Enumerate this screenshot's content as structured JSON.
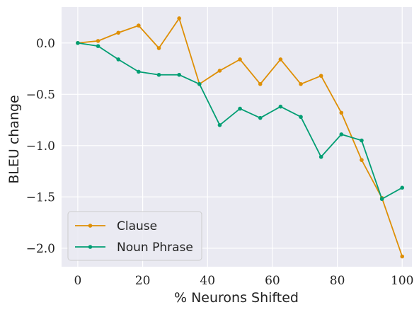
{
  "chart_data": {
    "type": "line",
    "title": "",
    "xlabel": "% Neurons Shifted",
    "ylabel": "BLEU change",
    "xlim": [
      -5,
      103
    ],
    "ylim": [
      -2.18,
      0.35
    ],
    "xticks": [
      0,
      20,
      40,
      60,
      80,
      100
    ],
    "yticks": [
      0.0,
      -0.5,
      -1.0,
      -1.5,
      -2.0
    ],
    "xtick_labels": [
      "0",
      "20",
      "40",
      "60",
      "80",
      "100"
    ],
    "ytick_labels": [
      "0.0",
      "−0.5",
      "−1.0",
      "−1.5",
      "−2.0"
    ],
    "grid": true,
    "legend_position": "lower-left",
    "background": "#eaeaf2",
    "x": [
      0,
      6.25,
      12.5,
      18.75,
      25,
      31.25,
      37.5,
      43.75,
      50,
      56.25,
      62.5,
      68.75,
      75,
      81.25,
      87.5,
      93.75,
      100
    ],
    "series": [
      {
        "name": "Clause",
        "color": "#de8f05",
        "values": [
          0.0,
          0.02,
          0.1,
          0.17,
          -0.05,
          0.24,
          -0.4,
          -0.27,
          -0.16,
          -0.4,
          -0.16,
          -0.4,
          -0.32,
          -0.68,
          -1.14,
          -1.51,
          -2.08
        ]
      },
      {
        "name": "Noun Phrase",
        "color": "#029e73",
        "values": [
          0.0,
          -0.03,
          -0.16,
          -0.28,
          -0.31,
          -0.31,
          -0.4,
          -0.8,
          -0.64,
          -0.73,
          -0.62,
          -0.72,
          -1.11,
          -0.89,
          -0.95,
          -1.52,
          -1.41
        ]
      }
    ]
  }
}
